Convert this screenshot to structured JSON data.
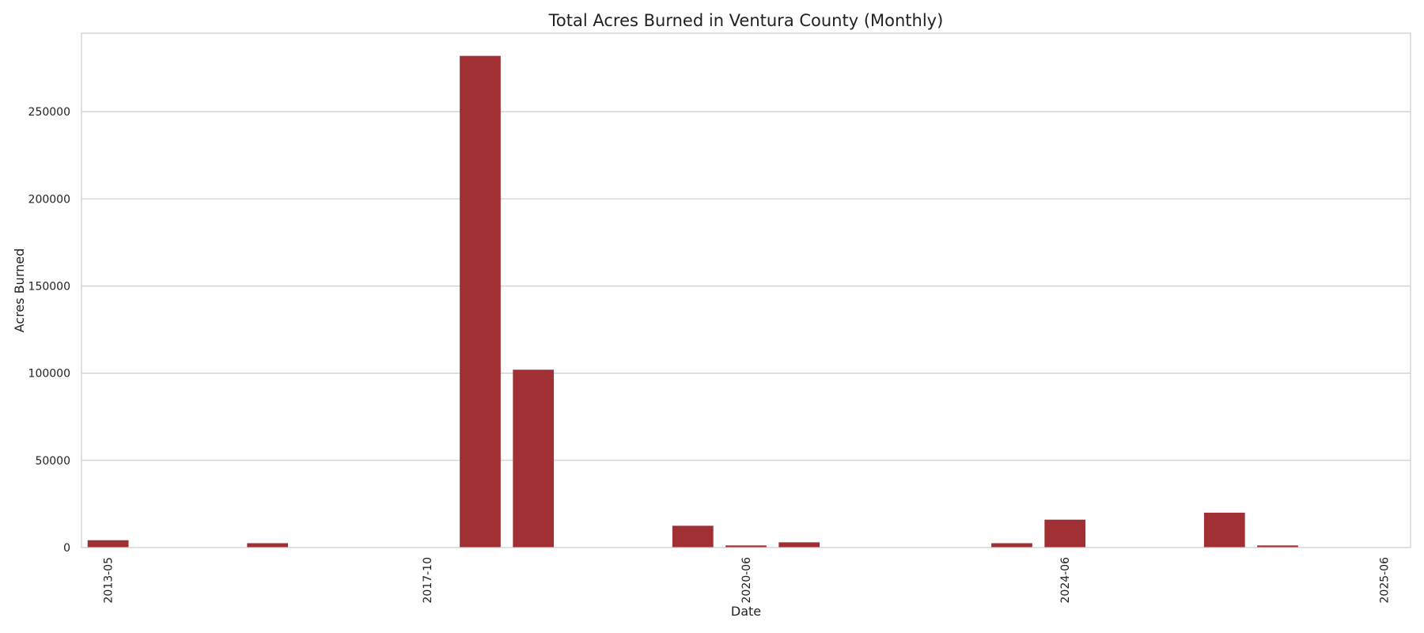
{
  "chart_data": {
    "type": "bar",
    "title": "Total Acres Burned in Ventura County (Monthly)",
    "xlabel": "Date",
    "ylabel": "Acres Burned",
    "ylim": [
      0,
      295000
    ],
    "y_ticks": [
      0,
      50000,
      100000,
      150000,
      200000,
      250000
    ],
    "grid": true,
    "bar_color": "#a03034",
    "categories": [
      "2013-05",
      "",
      "",
      "",
      "",
      "",
      "2017-10",
      "",
      "",
      "",
      "",
      "",
      "2020-06",
      "",
      "",
      "",
      "",
      "",
      "2024-06",
      "",
      "",
      "",
      "",
      "",
      "2025-06"
    ],
    "bars": [
      {
        "index": 0,
        "value": 4200
      },
      {
        "index": 3,
        "value": 2500
      },
      {
        "index": 7,
        "value": 282000
      },
      {
        "index": 8,
        "value": 102000
      },
      {
        "index": 11,
        "value": 12500
      },
      {
        "index": 12,
        "value": 1200
      },
      {
        "index": 13,
        "value": 3000
      },
      {
        "index": 17,
        "value": 2500
      },
      {
        "index": 18,
        "value": 16000
      },
      {
        "index": 21,
        "value": 20000
      },
      {
        "index": 22,
        "value": 1200
      }
    ]
  }
}
